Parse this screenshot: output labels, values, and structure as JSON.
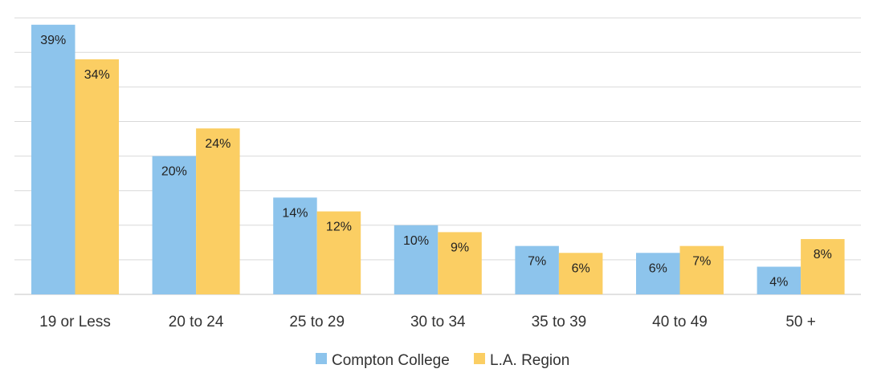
{
  "chart_data": {
    "type": "bar",
    "title": "",
    "xlabel": "",
    "ylabel": "",
    "ylim": [
      0,
      40
    ],
    "grid": true,
    "legend_position": "bottom-center",
    "categories": [
      "19 or Less",
      "20 to 24",
      "25 to 29",
      "30 to 34",
      "35 to 39",
      "40 to 49",
      "50 +"
    ],
    "series": [
      {
        "name": "Compton College",
        "color": "#8DC4EC",
        "values": [
          39,
          20,
          14,
          10,
          7,
          6,
          4
        ],
        "labels": [
          "39%",
          "20%",
          "14%",
          "10%",
          "7%",
          "6%",
          "4%"
        ]
      },
      {
        "name": "L.A. Region",
        "color": "#FBCE63",
        "values": [
          34,
          24,
          12,
          9,
          6,
          7,
          8
        ],
        "labels": [
          "34%",
          "24%",
          "12%",
          "9%",
          "6%",
          "7%",
          "8%"
        ]
      }
    ]
  }
}
